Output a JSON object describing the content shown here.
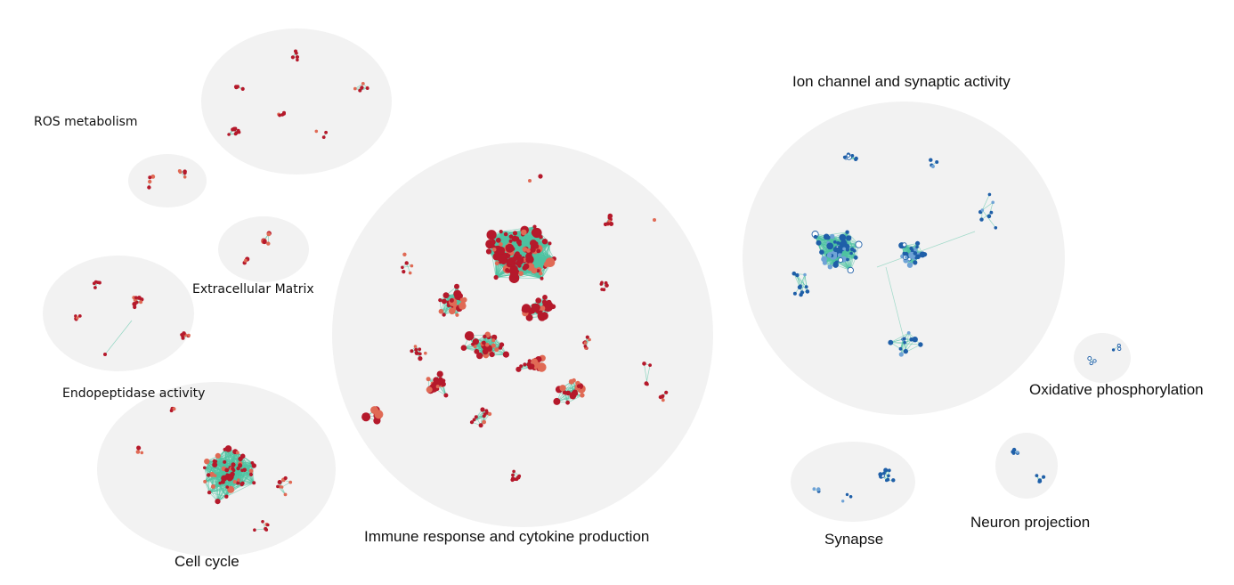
{
  "clusters": [
    {
      "id": "ros",
      "label": "ROS metabolism",
      "color": "red"
    },
    {
      "id": "ecm",
      "label": "Extracellular Matrix",
      "color": "red"
    },
    {
      "id": "endo",
      "label": "Endopeptidase activity",
      "color": "red"
    },
    {
      "id": "cell",
      "label": "Cell cycle",
      "color": "red"
    },
    {
      "id": "immune",
      "label": "Immune response and cytokine production",
      "color": "red"
    },
    {
      "id": "ion",
      "label": "Ion channel and synaptic activity",
      "color": "blue"
    },
    {
      "id": "oxphos",
      "label": "Oxidative phosphorylation",
      "color": "blue"
    },
    {
      "id": "synapse",
      "label": "Synapse",
      "color": "blue"
    },
    {
      "id": "neuron",
      "label": "Neuron projection",
      "color": "blue"
    }
  ],
  "colors": {
    "background_bubble": "#f2f2f2",
    "edge": "#4fc3a1",
    "node_red_dark": "#b5192b",
    "node_red_light": "#e06a55",
    "node_blue_dark": "#1f5fa8",
    "node_blue_light": "#6fa3d6",
    "node_hollow_stroke": "#1f5fa8"
  }
}
